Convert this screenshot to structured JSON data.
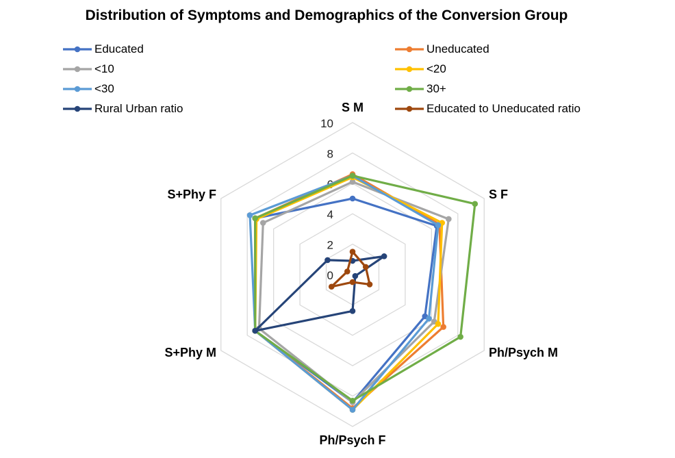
{
  "chart_data": {
    "type": "radar",
    "title": "Distribution of Symptoms and Demographics of the Conversion Group",
    "axes": [
      "S M",
      "S F",
      "Ph/Psych M",
      "Ph/Psych F",
      "S+Phy M",
      "S+Phy F"
    ],
    "rlim": [
      0,
      10
    ],
    "ticks": [
      "0",
      "2",
      "4",
      "6",
      "8",
      "10"
    ],
    "grid": true,
    "legend_position": "top",
    "series": [
      {
        "name": "Educated",
        "color": "#4472C4",
        "values": [
          5.0,
          6.4,
          5.5,
          8.4,
          7.4,
          7.4
        ]
      },
      {
        "name": "Uneducated",
        "color": "#ED7D31",
        "values": [
          6.6,
          6.6,
          6.9,
          8.8,
          7.4,
          7.4
        ]
      },
      {
        "name": "<10",
        "color": "#A5A5A5",
        "values": [
          6.1,
          7.3,
          6.2,
          8.4,
          7.1,
          6.8
        ]
      },
      {
        "name": "<20",
        "color": "#FFC000",
        "values": [
          6.4,
          6.8,
          6.5,
          8.9,
          7.4,
          7.3
        ]
      },
      {
        "name": "<30",
        "color": "#5B9BD5",
        "values": [
          6.5,
          6.5,
          5.8,
          8.9,
          7.4,
          7.8
        ]
      },
      {
        "name": "30+",
        "color": "#70AD47",
        "values": [
          6.5,
          9.3,
          8.2,
          8.3,
          7.4,
          7.4
        ]
      },
      {
        "name": "Rural Urban ratio",
        "color": "#264478",
        "values": [
          0.9,
          2.4,
          0.2,
          2.4,
          7.4,
          1.9
        ]
      },
      {
        "name": "Educated to Uneducated ratio",
        "color": "#9E480E",
        "values": [
          1.5,
          1.0,
          1.3,
          0.5,
          1.6,
          0.4
        ]
      }
    ]
  }
}
